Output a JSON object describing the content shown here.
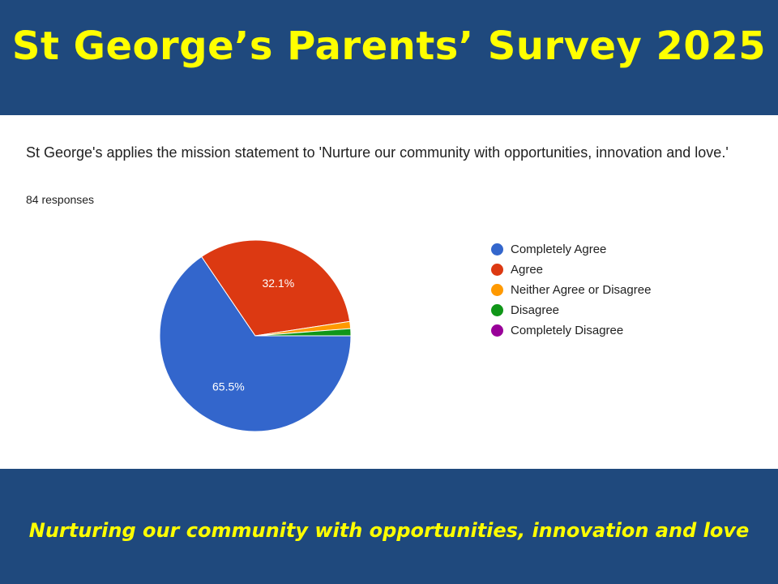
{
  "header": {
    "title": "St George’s Parents’ Survey 2025"
  },
  "question": "St George's applies the mission statement to 'Nurture our community with opportunities, innovation and love.'",
  "responses": "84 responses",
  "footer": {
    "tagline": "Nurturing our community with opportunities, innovation and love"
  },
  "chart_data": {
    "type": "pie",
    "categories": [
      "Completely Agree",
      "Agree",
      "Neither Agree or Disagree",
      "Disagree",
      "Completely Disagree"
    ],
    "values": [
      65.5,
      32.1,
      1.2,
      1.2,
      0
    ],
    "data_labels": [
      "65.5%",
      "32.1%",
      "",
      "",
      ""
    ],
    "colors": [
      "#3366cc",
      "#dc3912",
      "#ff9900",
      "#109618",
      "#990099"
    ],
    "legend_position": "right"
  }
}
